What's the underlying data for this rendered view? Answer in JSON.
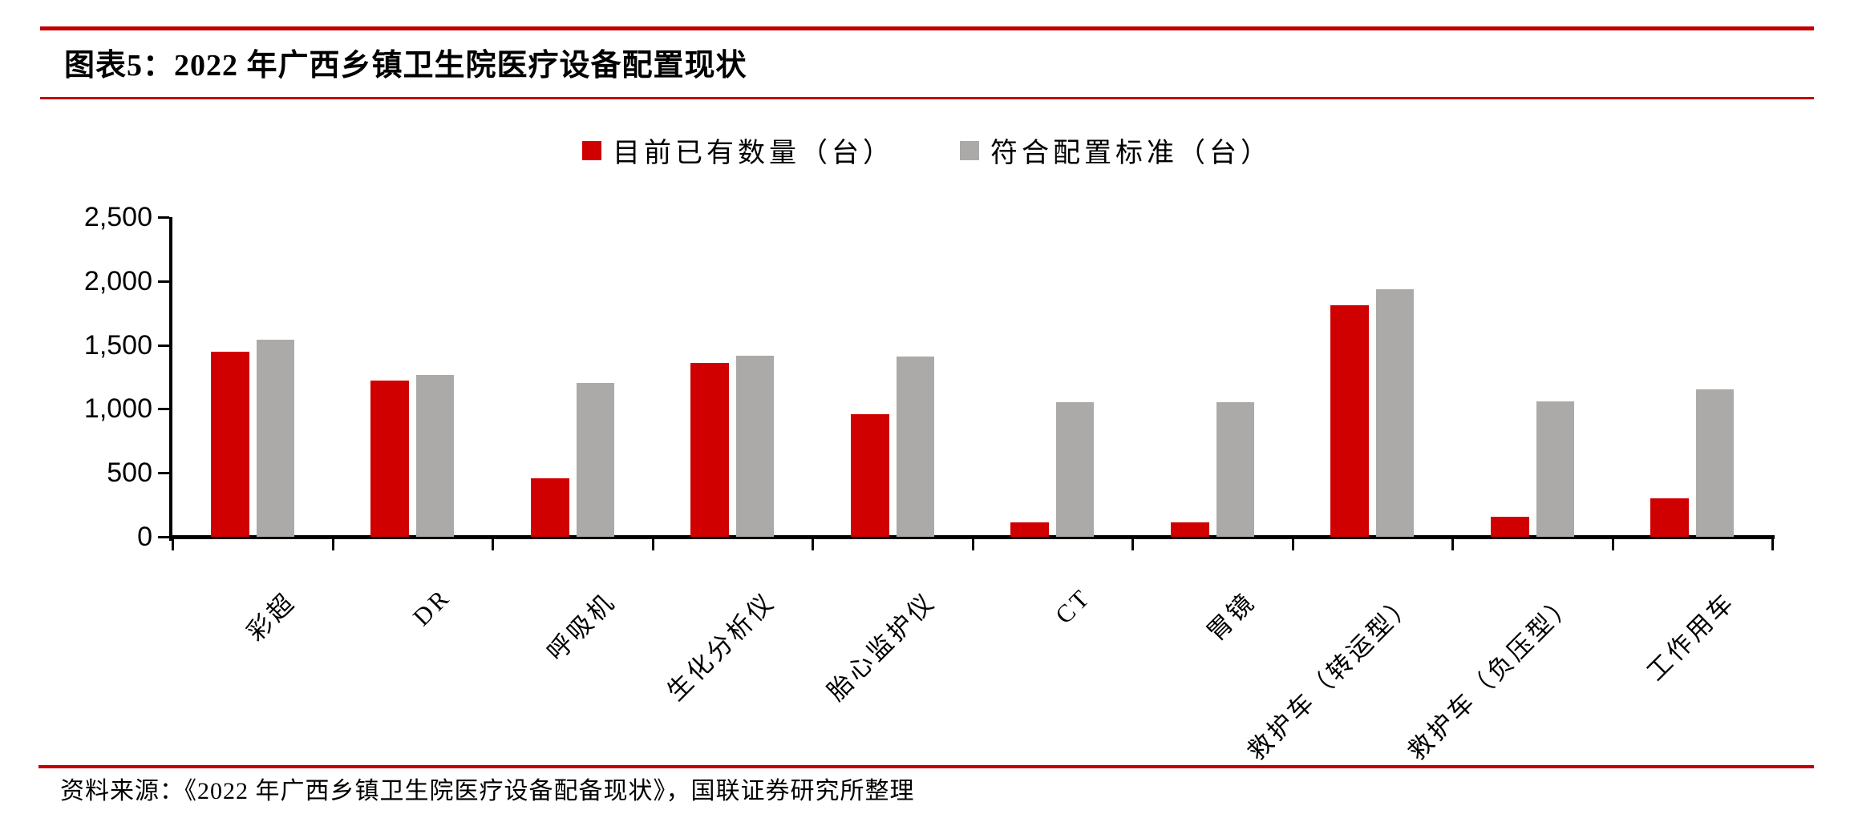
{
  "header": {
    "title": "图表5：2022 年广西乡镇卫生院医疗设备配置现状"
  },
  "chart_data": {
    "type": "bar",
    "title": "图表5：2022 年广西乡镇卫生院医疗设备配置现状",
    "categories": [
      "彩超",
      "DR",
      "呼吸机",
      "生化分析仪",
      "胎心监护仪",
      "CT",
      "胃镜",
      "救护车（转运型）",
      "救护车（负压型）",
      "工作用车"
    ],
    "series": [
      {
        "name": "目前已有数量（台）",
        "color": "#D00000",
        "values": [
          1445,
          1220,
          460,
          1360,
          960,
          115,
          110,
          1810,
          155,
          300
        ]
      },
      {
        "name": "符合配置标准（台）",
        "color": "#ACA9A9",
        "values": [
          1540,
          1265,
          1205,
          1415,
          1410,
          1050,
          1055,
          1935,
          1060,
          1150
        ]
      }
    ],
    "ylim": [
      0,
      2500
    ],
    "ytick_step": 500,
    "ytick_labels": [
      "0",
      "500",
      "1,000",
      "1,500",
      "2,000",
      "2,500"
    ],
    "legend_position": "top-center",
    "grid": false,
    "x_label_rotation_deg": -45
  },
  "footer": {
    "source": "资料来源：《2022 年广西乡镇卫生院医疗设备配备现状》，国联证券研究所整理"
  },
  "colors": {
    "accent_red": "#C00000",
    "bar_red": "#D00000",
    "bar_gray": "#ACA9A9",
    "axis_black": "#000000"
  }
}
